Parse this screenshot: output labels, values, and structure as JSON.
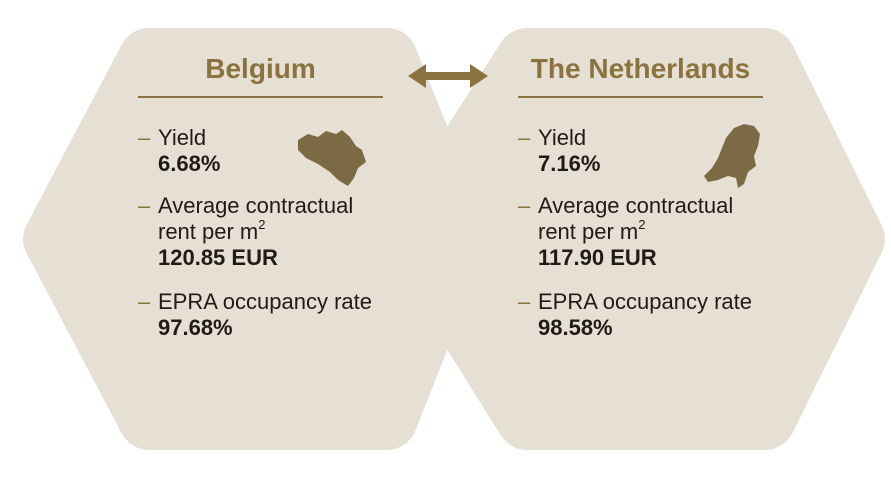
{
  "colors": {
    "hexagon_fill": "#e6dfd3",
    "accent": "#8b7340",
    "map": "#7b6a43",
    "text": "#1f1b17"
  },
  "connector": {
    "icon": "double-arrow-icon"
  },
  "belgium": {
    "title": "Belgium",
    "map_icon": "belgium-map-icon",
    "yield_label": "Yield",
    "yield_value": "6.68%",
    "rent_label_line1": "Average contractual",
    "rent_label_line2": "rent per m",
    "rent_label_sup": "2",
    "rent_value": "120.85 EUR",
    "occupancy_label": "EPRA occupancy rate",
    "occupancy_value": "97.68%"
  },
  "netherlands": {
    "title": "The Netherlands",
    "map_icon": "netherlands-map-icon",
    "yield_label": "Yield",
    "yield_value": "7.16%",
    "rent_label_line1": "Average contractual",
    "rent_label_line2": "rent per m",
    "rent_label_sup": "2",
    "rent_value": "117.90 EUR",
    "occupancy_label": "EPRA occupancy rate",
    "occupancy_value": "98.58%"
  }
}
